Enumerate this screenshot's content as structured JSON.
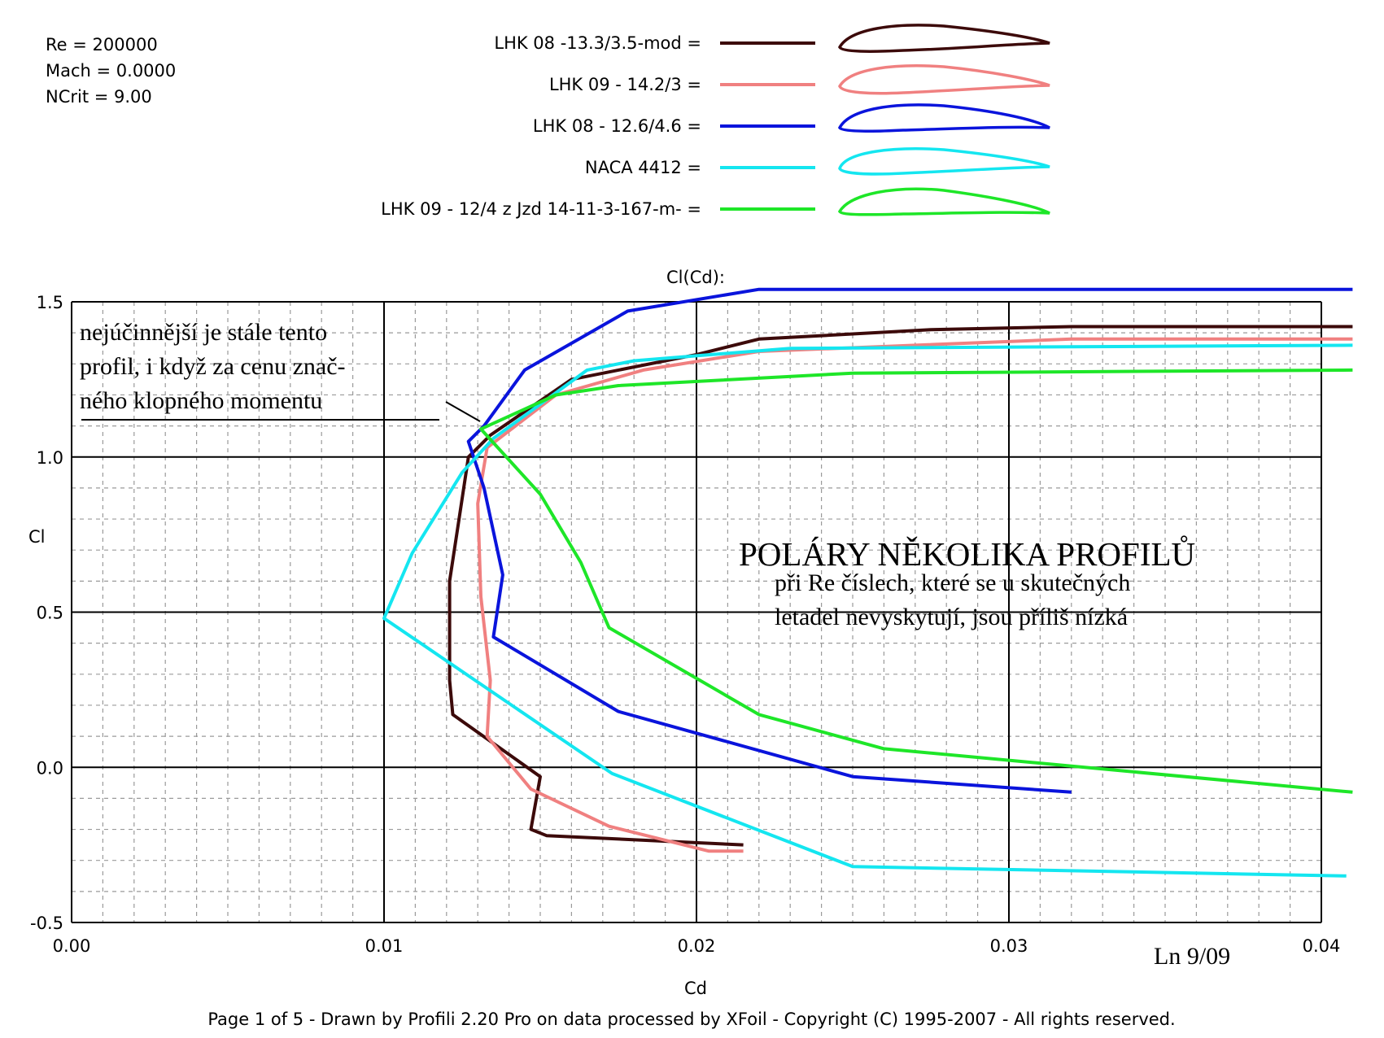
{
  "chart_data": {
    "type": "line",
    "title": "Cl(Cd):",
    "xlabel": "Cd",
    "ylabel": "Cl",
    "xlim": [
      0.0,
      0.04
    ],
    "ylim": [
      -0.5,
      1.5
    ],
    "x_ticks": [
      "0.00",
      "0.01",
      "0.02",
      "0.03",
      "0.04"
    ],
    "y_ticks": [
      "1.5",
      "1.0",
      "0.5",
      "0.0",
      "-0.5"
    ],
    "grid": true,
    "legend_placement": "top",
    "info": [
      "Re = 200000",
      "Mach = 0.0000",
      "NCrit = 9.00"
    ],
    "series": [
      {
        "name": "LHK  08 -13.3/3.5-mod =",
        "color": "#3c0a0a",
        "points": [
          [
            0.0215,
            -0.25
          ],
          [
            0.0152,
            -0.22
          ],
          [
            0.0147,
            -0.2
          ],
          [
            0.015,
            -0.03
          ],
          [
            0.0122,
            0.17
          ],
          [
            0.0121,
            0.28
          ],
          [
            0.0121,
            0.6
          ],
          [
            0.0124,
            0.8
          ],
          [
            0.0127,
            1.0
          ],
          [
            0.0134,
            1.07
          ],
          [
            0.016,
            1.25
          ],
          [
            0.02,
            1.33
          ],
          [
            0.022,
            1.38
          ],
          [
            0.0275,
            1.41
          ],
          [
            0.032,
            1.42
          ],
          [
            0.041,
            1.42
          ]
        ]
      },
      {
        "name": "LHK  09 - 14.2/3 =",
        "color": "#f08080",
        "points": [
          [
            0.0215,
            -0.27
          ],
          [
            0.0204,
            -0.27
          ],
          [
            0.0172,
            -0.19
          ],
          [
            0.0147,
            -0.07
          ],
          [
            0.0133,
            0.1
          ],
          [
            0.0134,
            0.28
          ],
          [
            0.0131,
            0.55
          ],
          [
            0.013,
            0.85
          ],
          [
            0.0133,
            1.03
          ],
          [
            0.0155,
            1.2
          ],
          [
            0.0183,
            1.28
          ],
          [
            0.022,
            1.34
          ],
          [
            0.032,
            1.38
          ],
          [
            0.041,
            1.38
          ]
        ]
      },
      {
        "name": "LHK 08 - 12.6/4.6 =",
        "color": "#0a14dc",
        "points": [
          [
            0.032,
            -0.08
          ],
          [
            0.025,
            -0.03
          ],
          [
            0.0175,
            0.18
          ],
          [
            0.0135,
            0.42
          ],
          [
            0.0138,
            0.62
          ],
          [
            0.0132,
            0.9
          ],
          [
            0.0127,
            1.05
          ],
          [
            0.0132,
            1.1
          ],
          [
            0.0145,
            1.28
          ],
          [
            0.0178,
            1.47
          ],
          [
            0.022,
            1.54
          ],
          [
            0.041,
            1.54
          ]
        ]
      },
      {
        "name": "NACA 4412 =",
        "color": "#14e6f0",
        "points": [
          [
            0.0408,
            -0.35
          ],
          [
            0.025,
            -0.32
          ],
          [
            0.0173,
            -0.02
          ],
          [
            0.01,
            0.48
          ],
          [
            0.0109,
            0.69
          ],
          [
            0.0125,
            0.95
          ],
          [
            0.0135,
            1.06
          ],
          [
            0.0165,
            1.28
          ],
          [
            0.018,
            1.31
          ],
          [
            0.023,
            1.35
          ],
          [
            0.041,
            1.36
          ]
        ]
      },
      {
        "name": "LHK  09   - 12/4     z  Jzd 14-11-3-167-m- =",
        "color": "#1ee628",
        "points": [
          [
            0.041,
            -0.08
          ],
          [
            0.026,
            0.06
          ],
          [
            0.022,
            0.17
          ],
          [
            0.0172,
            0.45
          ],
          [
            0.0163,
            0.66
          ],
          [
            0.015,
            0.88
          ],
          [
            0.0131,
            1.09
          ],
          [
            0.0155,
            1.2
          ],
          [
            0.0175,
            1.23
          ],
          [
            0.025,
            1.27
          ],
          [
            0.041,
            1.28
          ]
        ]
      }
    ],
    "annotations": {
      "best_note": [
        "nejúčinnější je stále tento",
        "profil, i když za cenu znač-",
        "ného klopného momentu"
      ],
      "main_title": "POLÁRY  NĚKOLIKA  PROFILŮ",
      "subtitle": [
        "při Re číslech, které se u skutečných",
        "letadel nevyskytují, jsou příliš nízká"
      ],
      "signature": "Ln 9/09"
    },
    "footer": "Page 1 of 5   -   Drawn by Profili 2.20 Pro on data processed by  XFoil - Copyright (C) 1995-2007 - All rights reserved."
  }
}
